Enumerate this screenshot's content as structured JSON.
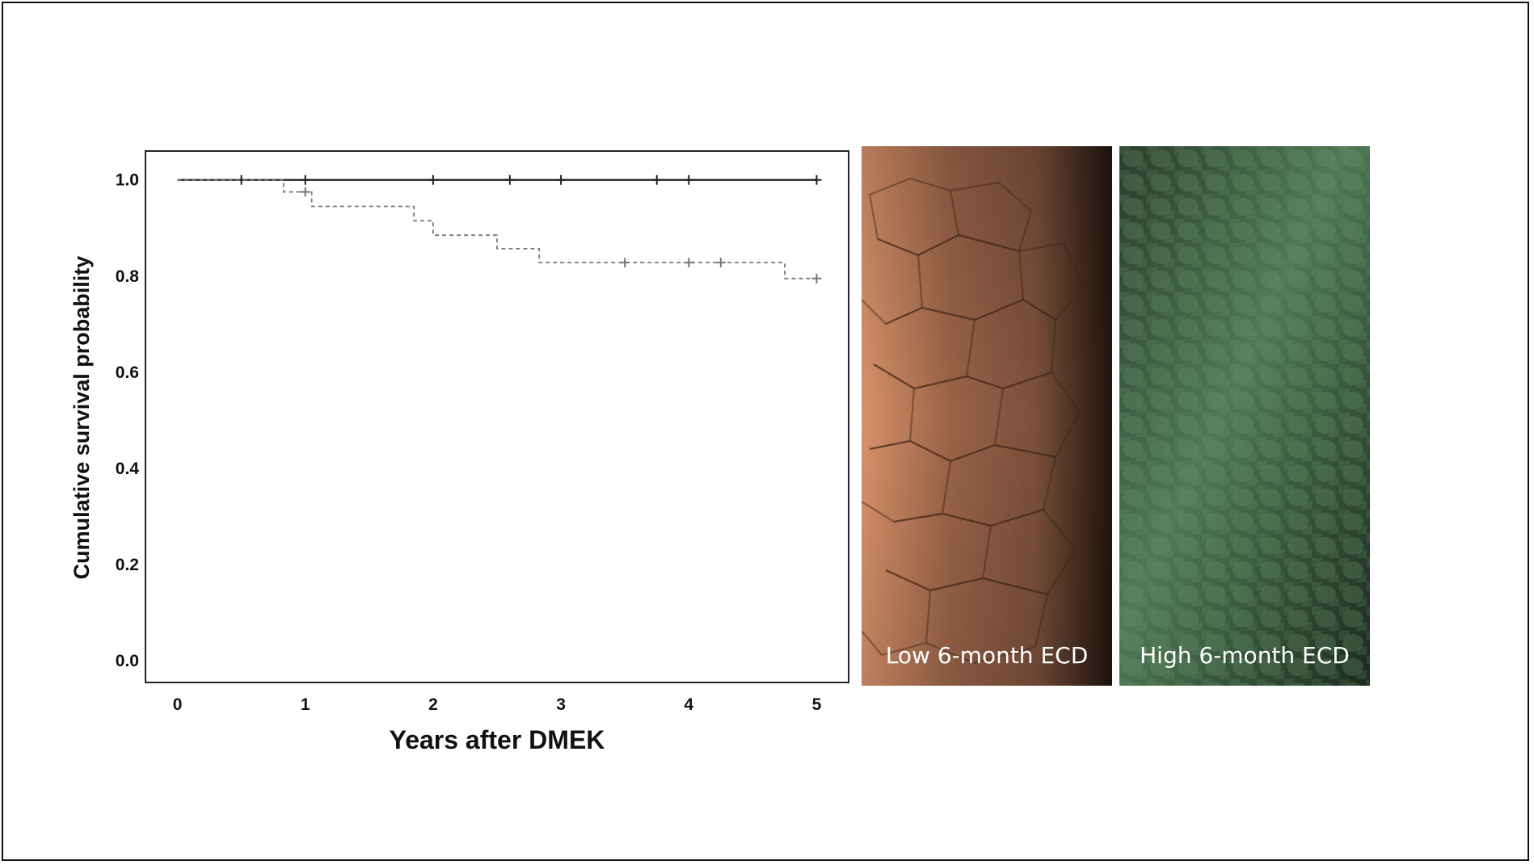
{
  "chart_data": {
    "type": "line",
    "title": "",
    "xlabel": "Years after DMEK",
    "ylabel": "Cumulative survival probability",
    "xlim": [
      -0.25,
      5.25
    ],
    "ylim": [
      -0.045,
      1.06
    ],
    "xticks": [
      0,
      1,
      2,
      3,
      4,
      5
    ],
    "yticks": [
      0.0,
      0.2,
      0.4,
      0.6,
      0.8,
      1.0
    ],
    "xtick_labels": [
      "0",
      "1",
      "2",
      "3",
      "4",
      "5"
    ],
    "ytick_labels": [
      "0.0",
      "0.2",
      "0.4",
      "0.6",
      "0.8",
      "1.0"
    ],
    "grid": false,
    "legend": "none",
    "series": [
      {
        "style": "solid",
        "color": "#222222",
        "steps": [
          [
            0,
            1.0
          ],
          [
            5.0,
            1.0
          ]
        ],
        "censored": [
          [
            0.5,
            1.0
          ],
          [
            1.0,
            1.0
          ],
          [
            2.0,
            1.0
          ],
          [
            2.6,
            1.0
          ],
          [
            3.0,
            1.0
          ],
          [
            3.75,
            1.0
          ],
          [
            4.0,
            1.0
          ],
          [
            5.0,
            1.0
          ]
        ]
      },
      {
        "style": "dashed",
        "color": "#777777",
        "steps": [
          [
            0,
            1.0
          ],
          [
            0.83,
            0.975
          ],
          [
            1.05,
            0.945
          ],
          [
            1.85,
            0.915
          ],
          [
            2.0,
            0.885
          ],
          [
            2.5,
            0.857
          ],
          [
            2.83,
            0.828
          ],
          [
            4.75,
            0.795
          ],
          [
            5.0,
            0.795
          ]
        ],
        "censored": [
          [
            1.0,
            0.975
          ],
          [
            3.5,
            0.828
          ],
          [
            4.0,
            0.828
          ],
          [
            4.25,
            0.828
          ],
          [
            5.0,
            0.795
          ]
        ]
      }
    ]
  },
  "panels": {
    "low": {
      "caption": "Low 6-month ECD",
      "color_light": "#d9926a",
      "color_dark": "#1f140f"
    },
    "high": {
      "caption": "High 6-month ECD",
      "color_light": "#4e7a55",
      "color_dark": "#1c2a1e"
    }
  }
}
